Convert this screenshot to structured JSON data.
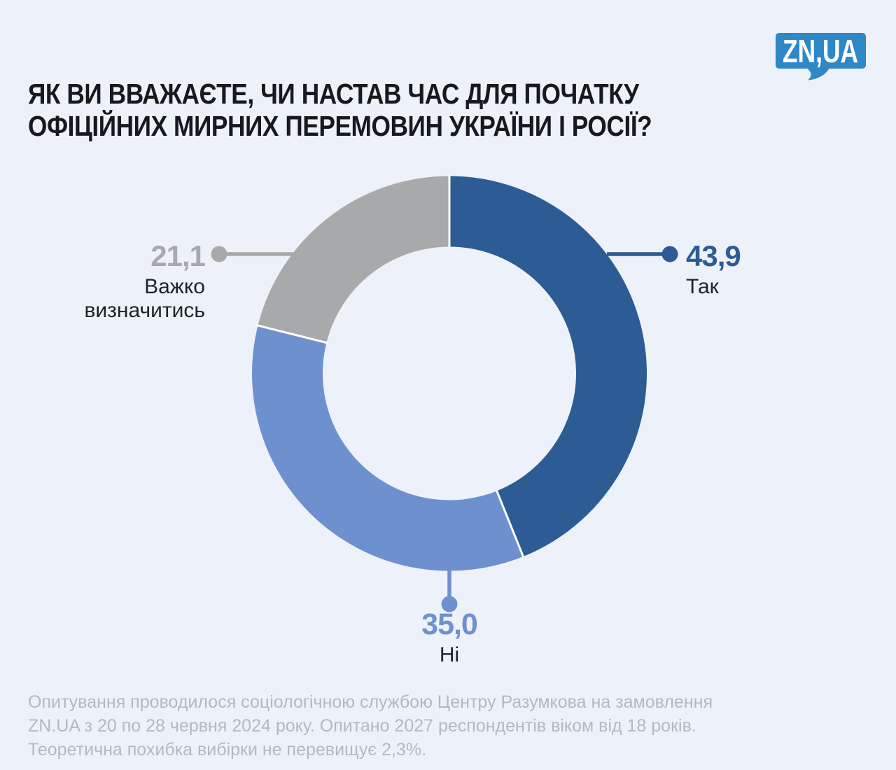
{
  "page": {
    "background": "#edf2fa"
  },
  "logo": {
    "text": "ZN,UA",
    "bubble_color": "#2e87c7",
    "text_color": "#ffffff"
  },
  "title": {
    "line1": "ЯК ВИ ВВАЖАЄТЕ, ЧИ НАСТАВ ЧАС ДЛЯ ПОЧАТКУ",
    "line2": "ОФІЦІЙНИХ МИРНИХ ПЕРЕМОВИН УКРАЇНИ І РОСІЇ?",
    "color": "#17191d"
  },
  "chart_data": {
    "type": "pie",
    "donut": true,
    "title": "ЯК ВИ ВВАЖАЄТЕ, ЧИ НАСТАВ ЧАС ДЛЯ ПОЧАТКУ ОФІЦІЙНИХ МИРНИХ ПЕРЕМОВИН УКРАЇНИ І РОСІЇ?",
    "units": "%",
    "start_angle_deg": 0,
    "direction": "clockwise",
    "segments": [
      {
        "label": "Так",
        "value": 43.9,
        "display_value": "43,9",
        "color": "#2d5c94",
        "callout_side": "right"
      },
      {
        "label": "Ні",
        "value": 35.0,
        "display_value": "35,0",
        "color": "#6e90ce",
        "callout_side": "bottom"
      },
      {
        "label": "Важко визначитись",
        "label_lines": [
          "Важко",
          "визначитись"
        ],
        "value": 21.1,
        "display_value": "21,1",
        "color": "#a8a9ab",
        "callout_side": "left"
      }
    ],
    "label_text_color": "#1f2226",
    "divider_color": "#ffffff"
  },
  "footer": {
    "color": "#b3b9c2",
    "lines": [
      "Опитування проводилося соціологічною службою Центру Разумкова на замовлення",
      "ZN.UA з 20 по 28 червня 2024 року. Опитано 2027 респондентів віком від 18 років.",
      "Теоретична похибка вибірки не перевищує 2,3%."
    ]
  }
}
